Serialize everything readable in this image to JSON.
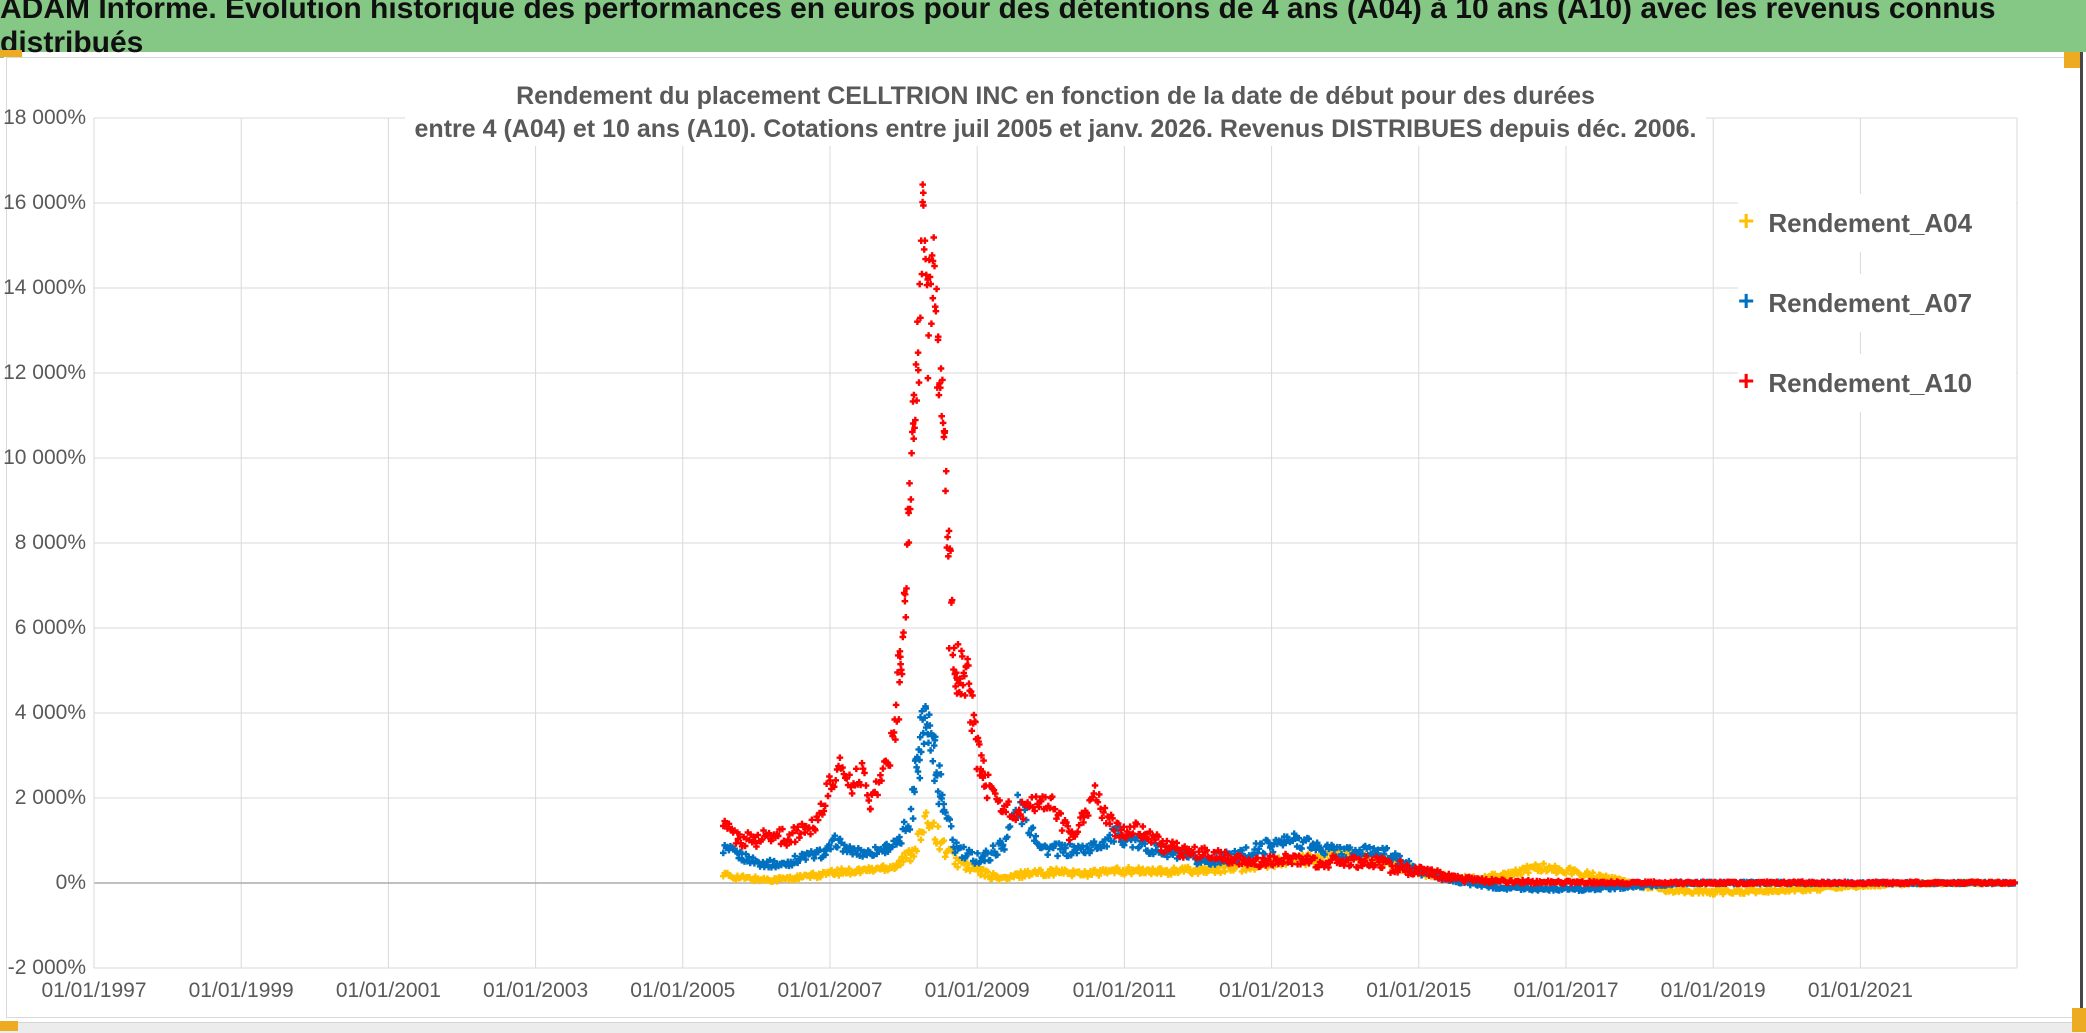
{
  "banner": {
    "text": "ADAM Informe. Evolution historique des performances en euros pour des détentions de 4 ans (A04) à 10 ans (A10) avec les revenus connus distribués"
  },
  "chart": {
    "title": {
      "line1": "Rendement du placement CELLTRION INC en fonction de la date de début pour des durées",
      "line2": "entre 4 (A04) et 10 ans (A10). Cotations entre juil 2005 et janv. 2026. Revenus DISTRIBUES depuis déc. 2006."
    },
    "legend": {
      "position": "right-inside",
      "items": [
        {
          "label": "Rendement_A04",
          "color": "#FFC000"
        },
        {
          "label": "Rendement_A07",
          "color": "#0070C0"
        },
        {
          "label": "Rendement_A10",
          "color": "#FF0000"
        }
      ]
    },
    "colors": {
      "banner_green": "#85c785",
      "accent_gold": "#edab21",
      "grid": "#d9d9d9",
      "zero_axis": "#ababab",
      "label_gray": "#595959"
    }
  },
  "chart_data": {
    "type": "scatter",
    "marker": "plus",
    "title": "Rendement du placement CELLTRION INC en fonction de la date de début pour des durées entre 4 (A04) et 10 ans (A10). Cotations entre juil 2005 et janv. 2026. Revenus DISTRIBUES depuis déc. 2006.",
    "xlabel": "",
    "ylabel": "",
    "x_unit": "date (start of holding period)",
    "y_unit": "percent",
    "x_range_years": [
      1997.0,
      2023.13
    ],
    "ylim": [
      -2000,
      18000
    ],
    "grid": true,
    "y_ticks": [
      {
        "value": 18000,
        "label": "18 000%"
      },
      {
        "value": 16000,
        "label": "16 000%"
      },
      {
        "value": 14000,
        "label": "14 000%"
      },
      {
        "value": 12000,
        "label": "12 000%"
      },
      {
        "value": 10000,
        "label": "10 000%"
      },
      {
        "value": 8000,
        "label": "8 000%"
      },
      {
        "value": 6000,
        "label": "6 000%"
      },
      {
        "value": 4000,
        "label": "4 000%"
      },
      {
        "value": 2000,
        "label": "2 000%"
      },
      {
        "value": 0,
        "label": "0%"
      },
      {
        "value": -2000,
        "label": "-2 000%"
      }
    ],
    "x_ticks": [
      {
        "year": 1997,
        "label": "01/01/1997"
      },
      {
        "year": 1999,
        "label": "01/01/1999"
      },
      {
        "year": 2001,
        "label": "01/01/2001"
      },
      {
        "year": 2003,
        "label": "01/01/2003"
      },
      {
        "year": 2005,
        "label": "01/01/2005"
      },
      {
        "year": 2007,
        "label": "01/01/2007"
      },
      {
        "year": 2009,
        "label": "01/01/2009"
      },
      {
        "year": 2011,
        "label": "01/01/2011"
      },
      {
        "year": 2013,
        "label": "01/01/2013"
      },
      {
        "year": 2015,
        "label": "01/01/2015"
      },
      {
        "year": 2017,
        "label": "01/01/2017"
      },
      {
        "year": 2019,
        "label": "01/01/2019"
      },
      {
        "year": 2021,
        "label": "01/01/2021"
      }
    ],
    "sampling_per_year": 52,
    "anchor_format": "[decimal_year, mean_return_pct, vertical_scatter_halfrange_pct]",
    "series": [
      {
        "name": "Rendement_A04",
        "color": "#FFC000",
        "anchors": [
          [
            2005.55,
            190,
            80
          ],
          [
            2005.85,
            110,
            60
          ],
          [
            2006.15,
            80,
            55
          ],
          [
            2006.5,
            110,
            60
          ],
          [
            2006.85,
            190,
            70
          ],
          [
            2007.2,
            270,
            80
          ],
          [
            2007.55,
            310,
            85
          ],
          [
            2007.9,
            420,
            110
          ],
          [
            2008.1,
            700,
            180
          ],
          [
            2008.25,
            1150,
            280
          ],
          [
            2008.35,
            1550,
            280
          ],
          [
            2008.45,
            1150,
            260
          ],
          [
            2008.58,
            750,
            200
          ],
          [
            2008.75,
            480,
            150
          ],
          [
            2008.95,
            330,
            120
          ],
          [
            2009.2,
            160,
            80
          ],
          [
            2009.4,
            100,
            70
          ],
          [
            2009.65,
            230,
            85
          ],
          [
            2010.0,
            260,
            85
          ],
          [
            2010.5,
            230,
            80
          ],
          [
            2011.0,
            290,
            90
          ],
          [
            2011.5,
            260,
            85
          ],
          [
            2012.0,
            310,
            95
          ],
          [
            2012.5,
            360,
            105
          ],
          [
            2013.0,
            460,
            120
          ],
          [
            2013.5,
            560,
            130
          ],
          [
            2014.0,
            660,
            145
          ],
          [
            2014.3,
            600,
            135
          ],
          [
            2014.65,
            450,
            120
          ],
          [
            2015.0,
            280,
            105
          ],
          [
            2015.4,
            130,
            70
          ],
          [
            2015.8,
            90,
            60
          ],
          [
            2016.2,
            210,
            85
          ],
          [
            2016.6,
            380,
            100
          ],
          [
            2017.0,
            300,
            90
          ],
          [
            2017.45,
            150,
            70
          ],
          [
            2017.9,
            -20,
            55
          ],
          [
            2018.4,
            -160,
            60
          ],
          [
            2019.0,
            -210,
            60
          ],
          [
            2019.8,
            -180,
            55
          ],
          [
            2020.5,
            -120,
            50
          ],
          [
            2021.1,
            -60,
            40
          ],
          [
            2021.6,
            -20,
            32
          ],
          [
            2022.2,
            0,
            26
          ],
          [
            2023.1,
            0,
            20
          ]
        ]
      },
      {
        "name": "Rendement_A07",
        "color": "#0070C0",
        "anchors": [
          [
            2005.55,
            820,
            140
          ],
          [
            2005.8,
            620,
            110
          ],
          [
            2006.05,
            470,
            90
          ],
          [
            2006.35,
            430,
            90
          ],
          [
            2006.65,
            620,
            110
          ],
          [
            2006.95,
            720,
            120
          ],
          [
            2007.08,
            1000,
            150
          ],
          [
            2007.25,
            760,
            110
          ],
          [
            2007.5,
            700,
            110
          ],
          [
            2007.75,
            820,
            120
          ],
          [
            2007.95,
            950,
            140
          ],
          [
            2008.1,
            1700,
            400
          ],
          [
            2008.22,
            3200,
            800
          ],
          [
            2008.3,
            4000,
            400
          ],
          [
            2008.42,
            2900,
            600
          ],
          [
            2008.55,
            1700,
            400
          ],
          [
            2008.68,
            900,
            250
          ],
          [
            2008.85,
            620,
            180
          ],
          [
            2009.1,
            600,
            170
          ],
          [
            2009.35,
            900,
            200
          ],
          [
            2009.55,
            1800,
            320
          ],
          [
            2009.68,
            1500,
            320
          ],
          [
            2009.9,
            820,
            160
          ],
          [
            2010.2,
            760,
            150
          ],
          [
            2010.55,
            820,
            150
          ],
          [
            2010.9,
            1150,
            200
          ],
          [
            2011.2,
            900,
            160
          ],
          [
            2011.6,
            700,
            140
          ],
          [
            2012.0,
            520,
            130
          ],
          [
            2012.5,
            620,
            140
          ],
          [
            2013.0,
            900,
            180
          ],
          [
            2013.35,
            1020,
            180
          ],
          [
            2013.7,
            800,
            160
          ],
          [
            2014.1,
            700,
            160
          ],
          [
            2014.45,
            780,
            160
          ],
          [
            2014.75,
            500,
            130
          ],
          [
            2015.05,
            250,
            100
          ],
          [
            2015.35,
            120,
            70
          ],
          [
            2015.7,
            0,
            50
          ],
          [
            2016.1,
            -100,
            45
          ],
          [
            2016.6,
            -130,
            45
          ],
          [
            2017.2,
            -140,
            45
          ],
          [
            2017.8,
            -90,
            40
          ],
          [
            2018.3,
            -30,
            35
          ],
          [
            2018.8,
            0,
            30
          ],
          [
            2019.5,
            0,
            28
          ],
          [
            2020.5,
            0,
            26
          ],
          [
            2021.5,
            0,
            25
          ],
          [
            2022.5,
            0,
            24
          ],
          [
            2023.1,
            0,
            20
          ]
        ]
      },
      {
        "name": "Rendement_A10",
        "color": "#FF0000",
        "anchors": [
          [
            2005.55,
            1350,
            250
          ],
          [
            2005.75,
            1050,
            180
          ],
          [
            2006.0,
            1000,
            180
          ],
          [
            2006.2,
            1150,
            200
          ],
          [
            2006.45,
            1050,
            180
          ],
          [
            2006.6,
            1250,
            200
          ],
          [
            2006.8,
            1400,
            220
          ],
          [
            2007.0,
            2300,
            300
          ],
          [
            2007.15,
            2750,
            250
          ],
          [
            2007.3,
            2350,
            250
          ],
          [
            2007.45,
            2600,
            250
          ],
          [
            2007.55,
            1900,
            200
          ],
          [
            2007.7,
            2500,
            300
          ],
          [
            2007.85,
            3300,
            400
          ],
          [
            2007.95,
            5000,
            900
          ],
          [
            2008.02,
            6600,
            500
          ],
          [
            2008.07,
            8800,
            800
          ],
          [
            2008.13,
            10800,
            700
          ],
          [
            2008.2,
            12700,
            1100
          ],
          [
            2008.26,
            15900,
            550
          ],
          [
            2008.33,
            13200,
            1400
          ],
          [
            2008.4,
            14600,
            600
          ],
          [
            2008.47,
            12000,
            1300
          ],
          [
            2008.55,
            10800,
            600
          ],
          [
            2008.62,
            7000,
            1500
          ],
          [
            2008.72,
            5000,
            700
          ],
          [
            2008.85,
            4900,
            700
          ],
          [
            2009.0,
            3000,
            500
          ],
          [
            2009.15,
            2200,
            350
          ],
          [
            2009.35,
            1800,
            300
          ],
          [
            2009.55,
            1600,
            250
          ],
          [
            2009.85,
            1950,
            250
          ],
          [
            2010.0,
            1900,
            220
          ],
          [
            2010.25,
            1150,
            200
          ],
          [
            2010.45,
            1500,
            250
          ],
          [
            2010.6,
            2100,
            250
          ],
          [
            2010.8,
            1400,
            250
          ],
          [
            2011.0,
            1200,
            200
          ],
          [
            2011.25,
            1250,
            200
          ],
          [
            2011.5,
            900,
            180
          ],
          [
            2011.8,
            750,
            150
          ],
          [
            2012.1,
            700,
            150
          ],
          [
            2012.5,
            550,
            130
          ],
          [
            2012.9,
            500,
            130
          ],
          [
            2013.2,
            600,
            150
          ],
          [
            2013.6,
            480,
            130
          ],
          [
            2014.0,
            520,
            140
          ],
          [
            2014.5,
            450,
            180
          ],
          [
            2014.8,
            350,
            150
          ],
          [
            2015.1,
            250,
            120
          ],
          [
            2015.45,
            120,
            80
          ],
          [
            2015.8,
            60,
            50
          ],
          [
            2016.2,
            40,
            40
          ],
          [
            2016.8,
            20,
            35
          ],
          [
            2017.5,
            10,
            30
          ],
          [
            2018.5,
            5,
            28
          ],
          [
            2019.5,
            5,
            28
          ],
          [
            2020.5,
            5,
            28
          ],
          [
            2021.5,
            5,
            25
          ],
          [
            2022.5,
            5,
            25
          ],
          [
            2023.1,
            5,
            20
          ]
        ]
      }
    ]
  }
}
